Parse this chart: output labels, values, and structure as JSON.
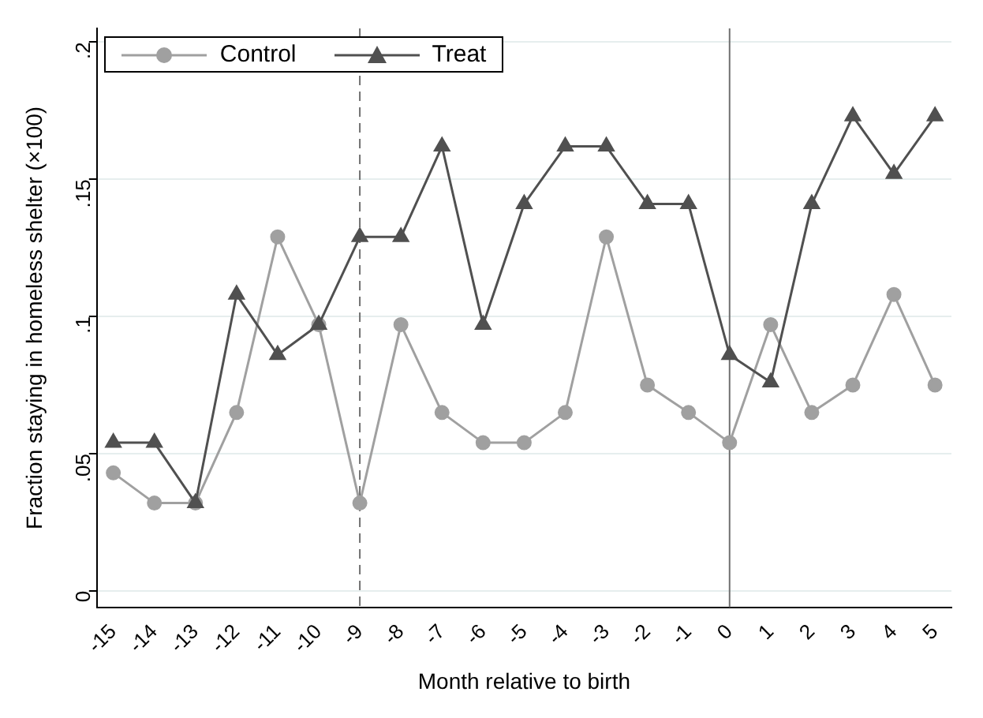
{
  "chart_data": {
    "type": "line",
    "xlabel": "Month relative to birth",
    "ylabel": "Fraction staying in homeless shelter (×100)",
    "x": [
      -15,
      -14,
      -13,
      -12,
      -11,
      -10,
      -9,
      -8,
      -7,
      -6,
      -5,
      -4,
      -3,
      -2,
      -1,
      0,
      1,
      2,
      3,
      4,
      5
    ],
    "series": [
      {
        "name": "Control",
        "color": "#a0a0a0",
        "marker": "circle",
        "values": [
          0.043,
          0.032,
          0.032,
          0.065,
          0.129,
          0.097,
          0.032,
          0.097,
          0.065,
          0.054,
          0.054,
          0.065,
          0.129,
          0.075,
          0.065,
          0.054,
          0.097,
          0.065,
          0.075,
          0.108,
          0.075
        ]
      },
      {
        "name": "Treat",
        "color": "#505050",
        "marker": "triangle",
        "values": [
          0.054,
          0.054,
          0.032,
          0.108,
          0.086,
          0.097,
          0.129,
          0.129,
          0.162,
          0.097,
          0.141,
          0.162,
          0.162,
          0.141,
          0.141,
          0.086,
          0.076,
          0.141,
          0.173,
          0.152,
          0.173
        ]
      }
    ],
    "xlim": [
      -15.4,
      5.4
    ],
    "xticks": [
      -15,
      -14,
      -13,
      -12,
      -11,
      -10,
      -9,
      -8,
      -7,
      -6,
      -5,
      -4,
      -3,
      -2,
      -1,
      0,
      1,
      2,
      3,
      4,
      5
    ],
    "ylim": [
      -0.006,
      0.205
    ],
    "yticks": [
      0,
      {
        "value": 0.05,
        "label": ".05"
      },
      {
        "value": 0.1,
        "label": ".1"
      },
      {
        "value": 0.15,
        "label": ".15"
      },
      {
        "value": 0.2,
        "label": ".2"
      }
    ],
    "ref_lines": [
      {
        "axis": "x",
        "value": -9,
        "color": "#707070",
        "line_style": "dashed"
      },
      {
        "axis": "x",
        "value": 0,
        "color": "#707070",
        "line_style": "solid"
      }
    ],
    "grid": "y",
    "legend": "top left"
  }
}
